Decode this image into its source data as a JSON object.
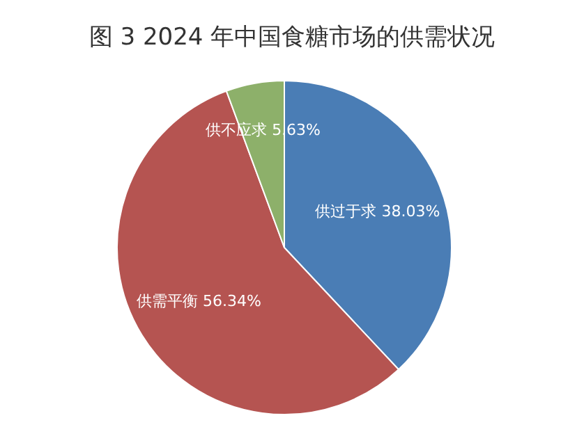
{
  "chart_data": {
    "type": "pie",
    "title": "图 3 2024 年中国食糖市场的供需状况",
    "categories": [
      "供过于求",
      "供需平衡",
      "供不应求"
    ],
    "values": [
      38.03,
      56.34,
      5.63
    ],
    "colors": [
      "#4a7db5",
      "#b55451",
      "#8db06a"
    ],
    "value_labels": [
      "38.03%",
      "56.34%",
      "5.63%"
    ]
  }
}
